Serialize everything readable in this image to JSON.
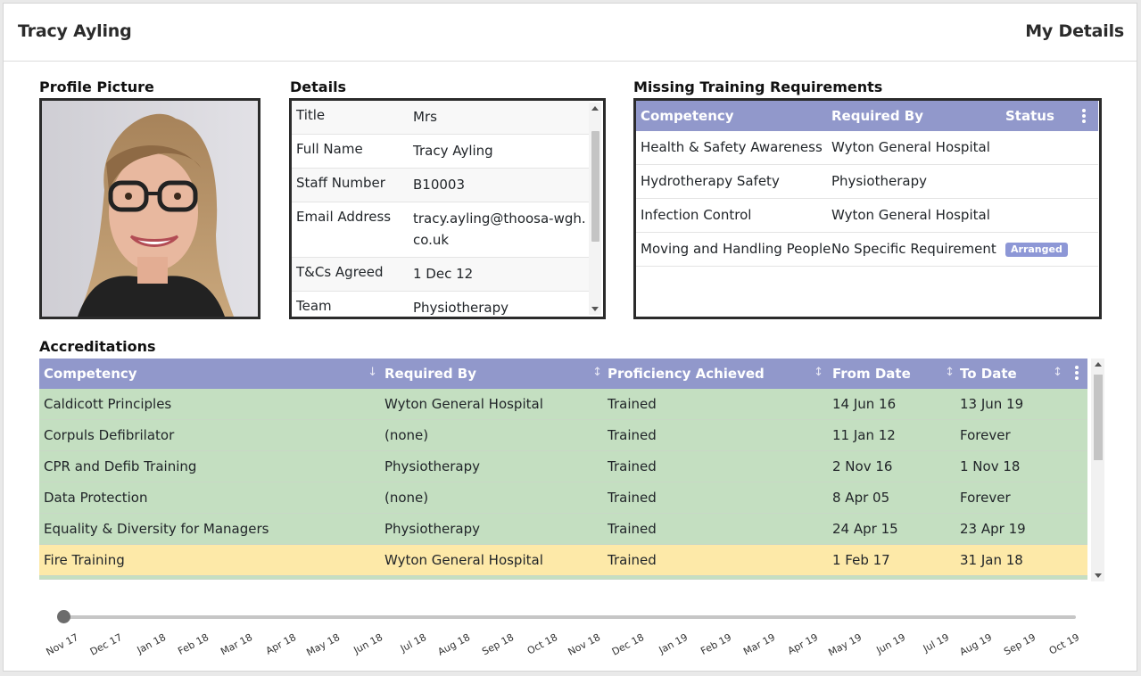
{
  "header": {
    "user_name": "Tracy Ayling",
    "page_title": "My Details"
  },
  "profile": {
    "title": "Profile Picture"
  },
  "details": {
    "title": "Details",
    "rows": [
      {
        "label": "Title",
        "value": "Mrs"
      },
      {
        "label": "Full Name",
        "value": "Tracy Ayling"
      },
      {
        "label": "Staff Number",
        "value": "B10003"
      },
      {
        "label": "Email Address",
        "value": "tracy.ayling@thoosa-wgh.co.uk"
      },
      {
        "label": "T&Cs Agreed",
        "value": "1 Dec 12"
      },
      {
        "label": "Team",
        "value": "Physiotherapy"
      }
    ]
  },
  "missing": {
    "title": "Missing Training Requirements",
    "columns": [
      "Competency",
      "Required By",
      "Status"
    ],
    "rows": [
      {
        "competency": "Health & Safety Awareness",
        "required_by": "Wyton General Hospital",
        "status": ""
      },
      {
        "competency": "Hydrotherapy Safety",
        "required_by": "Physiotherapy",
        "status": ""
      },
      {
        "competency": "Infection Control",
        "required_by": "Wyton General Hospital",
        "status": ""
      },
      {
        "competency": "Moving and Handling People",
        "required_by": "No Specific Requirement",
        "status": "Arranged"
      }
    ]
  },
  "accreditations": {
    "title": "Accreditations",
    "columns": [
      "Competency",
      "Required By",
      "Proficiency Achieved",
      "From Date",
      "To Date"
    ],
    "rows": [
      {
        "competency": "Caldicott Principles",
        "required_by": "Wyton General Hospital",
        "proficiency": "Trained",
        "from": "14 Jun 16",
        "to": "13 Jun 19",
        "state": "green"
      },
      {
        "competency": "Corpuls Defibrilator",
        "required_by": "(none)",
        "proficiency": "Trained",
        "from": "11 Jan 12",
        "to": "Forever",
        "state": "green"
      },
      {
        "competency": "CPR and Defib Training",
        "required_by": "Physiotherapy",
        "proficiency": "Trained",
        "from": "2 Nov 16",
        "to": "1 Nov 18",
        "state": "green"
      },
      {
        "competency": "Data Protection",
        "required_by": "(none)",
        "proficiency": "Trained",
        "from": "8 Apr 05",
        "to": "Forever",
        "state": "green"
      },
      {
        "competency": "Equality & Diversity for Managers",
        "required_by": "Physiotherapy",
        "proficiency": "Trained",
        "from": "24 Apr 15",
        "to": "23 Apr 19",
        "state": "green"
      },
      {
        "competency": "Fire Training",
        "required_by": "Wyton General Hospital",
        "proficiency": "Trained",
        "from": "1 Feb 17",
        "to": "31 Jan 18",
        "state": "yellow"
      }
    ]
  },
  "timeline": {
    "labels": [
      "Nov 17",
      "Dec 17",
      "Jan 18",
      "Feb 18",
      "Mar 18",
      "Apr 18",
      "May 18",
      "Jun 18",
      "Jul 18",
      "Aug 18",
      "Sep 18",
      "Oct 18",
      "Nov 18",
      "Dec 18",
      "Jan 19",
      "Feb 19",
      "Mar 19",
      "Apr 19",
      "May 19",
      "Jun 19",
      "Jul 19",
      "Aug 19",
      "Sep 19",
      "Oct 19"
    ],
    "selected": "Nov 17"
  },
  "colors": {
    "header": "#9198cb",
    "trained": "#c4dfc1",
    "expiring": "#fde9a8",
    "badge": "#8d97d6"
  }
}
